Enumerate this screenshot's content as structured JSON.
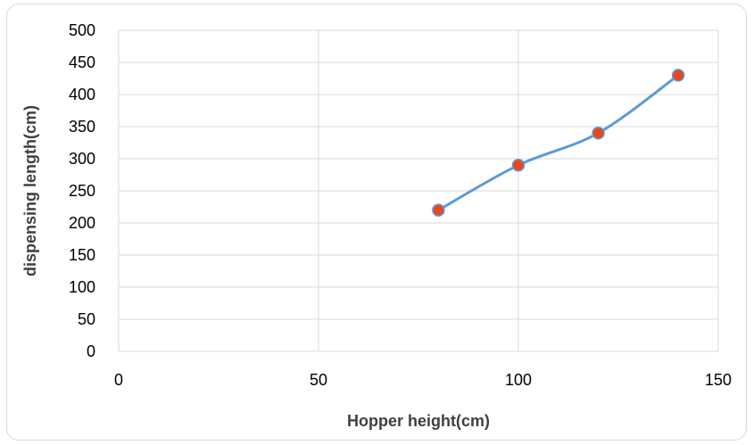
{
  "chart_data": {
    "type": "line",
    "smooth": true,
    "title": "",
    "xlabel": "Hopper height(cm)",
    "ylabel": "dispensing length(cm)",
    "xlim": [
      0,
      150
    ],
    "ylim": [
      0,
      500
    ],
    "x_ticks": [
      0,
      50,
      100,
      150
    ],
    "y_ticks": [
      0,
      50,
      100,
      150,
      200,
      250,
      300,
      350,
      400,
      450,
      500
    ],
    "grid": true,
    "legend": "none",
    "series": [
      {
        "x": [
          80,
          100,
          120,
          140
        ],
        "y": [
          220,
          290,
          340,
          430
        ],
        "line_color": "#5b9bd5",
        "marker_color": "#e8471e"
      }
    ]
  }
}
